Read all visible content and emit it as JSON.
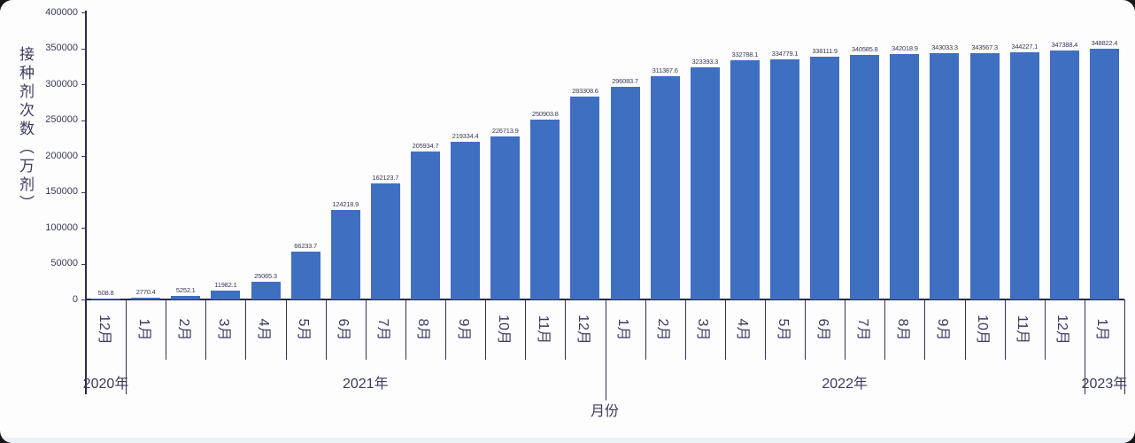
{
  "page": {
    "background": "#fdfdfe"
  },
  "chart_data": {
    "type": "bar",
    "title": "",
    "ylabel": "接种剂次数（万剂）",
    "xlabel": "月份",
    "bar_color": "#3F6FC1",
    "axis_color": "#2b2b4a",
    "text_color": "#3b3b5e",
    "ylim": [
      0,
      400000
    ],
    "yticks": [
      0,
      50000,
      100000,
      150000,
      200000,
      250000,
      300000,
      350000,
      400000
    ],
    "grid": "off",
    "legend": "none",
    "categories": [
      "12月",
      "1月",
      "2月",
      "3月",
      "4月",
      "5月",
      "6月",
      "7月",
      "8月",
      "9月",
      "10月",
      "11月",
      "12月",
      "1月",
      "2月",
      "3月",
      "4月",
      "5月",
      "6月",
      "7月",
      "8月",
      "9月",
      "10月",
      "11月",
      "12月",
      "1月"
    ],
    "values": [
      508.8,
      2770.4,
      5252.1,
      11982.1,
      25065.3,
      66233.7,
      124218.9,
      162123.7,
      205934.7,
      219334.4,
      226713.9,
      250903.8,
      283308.6,
      296083.7,
      311387.6,
      323393.3,
      332788.1,
      334779.1,
      338111.9,
      340585.8,
      342018.9,
      343033.3,
      343567.3,
      344227.1,
      347388.4,
      348822.4
    ],
    "value_labels": [
      "508.8",
      "2770.4",
      "5252.1",
      "11982.1",
      "25065.3",
      "66233.7",
      "124218.9",
      "162123.7",
      "205934.7",
      "219334.4",
      "226713.9",
      "250903.8",
      "283308.6",
      "296083.7",
      "311387.6",
      "323393.3",
      "332788.1",
      "334779.1",
      "338111.9",
      "340585.8",
      "342018.9",
      "343033.3",
      "343567.3",
      "344227.1",
      "347388.4",
      "348822.4"
    ],
    "year_groups": [
      {
        "label": "2020年",
        "months": 1
      },
      {
        "label": "2021年",
        "months": 12
      },
      {
        "label": "2022年",
        "months": 12
      },
      {
        "label": "2023年",
        "months": 1
      }
    ]
  }
}
